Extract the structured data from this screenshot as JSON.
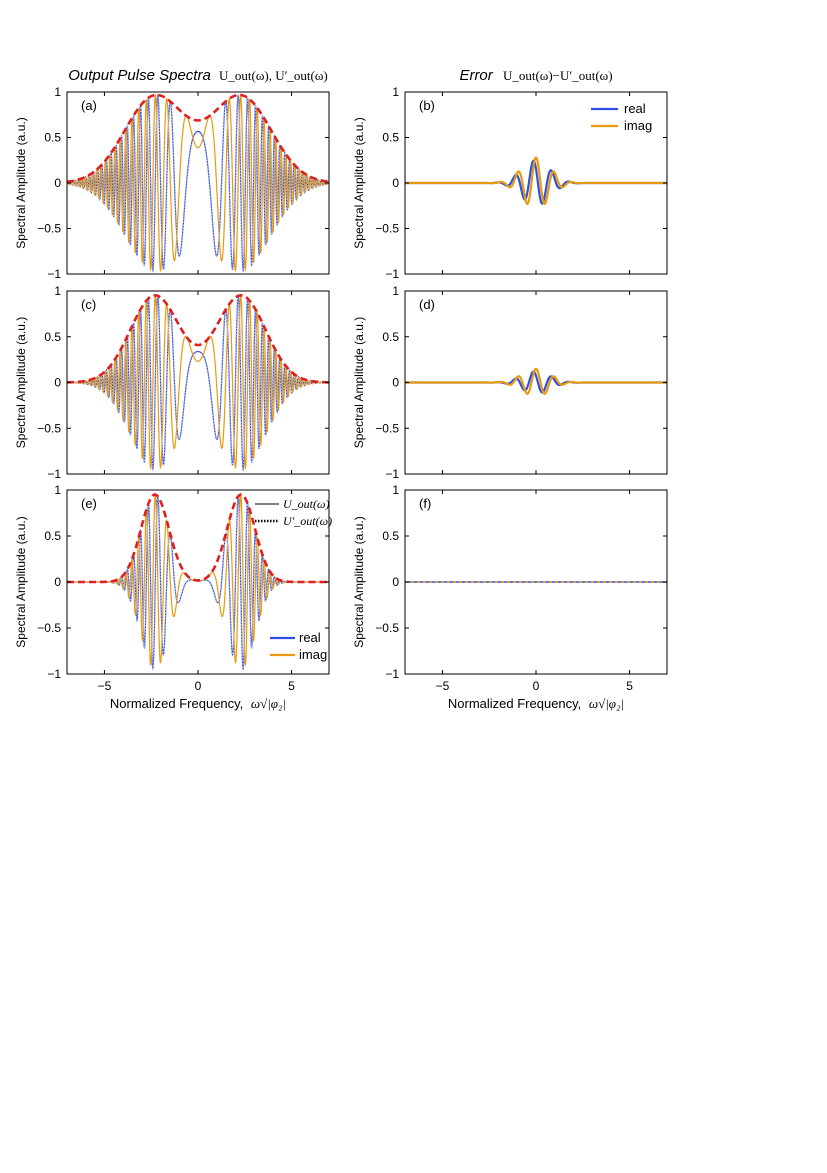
{
  "headers": {
    "left_italic": "Output Pulse Spectra",
    "left_math": "U_out(ω), U′_out(ω)",
    "right_italic": "Error",
    "right_math": "U_out(ω)−U′_out(ω)"
  },
  "axes": {
    "ylabel": "Spectral Amplitude (a.u.)",
    "xlabel_text": "Normalized Frequency,",
    "xlabel_math": "ω√|φ₂|",
    "xticks": [
      -5,
      0,
      5
    ],
    "yticks": [
      -1,
      -0.5,
      0,
      0.5,
      1
    ],
    "xlim": [
      -7,
      7
    ],
    "ylim": [
      -1,
      1
    ]
  },
  "colors": {
    "real": "#2f4fe0",
    "imag": "#e89a10",
    "envelope": "#e02020"
  },
  "legends": {
    "error": {
      "items": [
        "real",
        "imag"
      ],
      "placement": "top-right"
    },
    "panel_e_style": {
      "items": [
        "U_out(ω)",
        "U′_out(ω)"
      ],
      "placement": "top-right"
    },
    "panel_e_color": {
      "items": [
        "real",
        "imag"
      ],
      "placement": "bottom-right"
    }
  },
  "chart_data": [
    {
      "panel": "(a)",
      "type": "line",
      "kind": "spectrum",
      "peaks": [
        [
          -2.3,
          0.95
        ],
        [
          2.3,
          0.95
        ]
      ],
      "envelope_min_at_0": 0.62,
      "series": [
        {
          "name": "real"
        },
        {
          "name": "imag"
        }
      ],
      "xlim": [
        -7,
        7
      ],
      "ylim": [
        -1,
        1
      ]
    },
    {
      "panel": "(b)",
      "type": "line",
      "kind": "error",
      "peak_amplitude": {
        "real": 0.25,
        "imag": 0.28
      },
      "series": [
        {
          "name": "real"
        },
        {
          "name": "imag"
        }
      ],
      "xlim": [
        -7,
        7
      ],
      "ylim": [
        -1,
        1
      ]
    },
    {
      "panel": "(c)",
      "type": "line",
      "kind": "spectrum",
      "peaks": [
        [
          -2.3,
          0.95
        ],
        [
          2.3,
          0.95
        ]
      ],
      "envelope_min_at_0": 0.35,
      "series": [
        {
          "name": "real"
        },
        {
          "name": "imag"
        }
      ],
      "xlim": [
        -7,
        7
      ],
      "ylim": [
        -1,
        1
      ]
    },
    {
      "panel": "(d)",
      "type": "line",
      "kind": "error",
      "peak_amplitude": {
        "real": 0.12,
        "imag": 0.15
      },
      "series": [
        {
          "name": "real"
        },
        {
          "name": "imag"
        }
      ],
      "xlim": [
        -7,
        7
      ],
      "ylim": [
        -1,
        1
      ]
    },
    {
      "panel": "(e)",
      "type": "line",
      "kind": "spectrum",
      "peaks": [
        [
          -2.3,
          0.95
        ],
        [
          2.3,
          0.95
        ]
      ],
      "envelope_min_at_0": 0.0,
      "series": [
        {
          "name": "real"
        },
        {
          "name": "imag"
        }
      ],
      "xlim": [
        -7,
        7
      ],
      "ylim": [
        -1,
        1
      ]
    },
    {
      "panel": "(f)",
      "type": "line",
      "kind": "error",
      "peak_amplitude": {
        "real": 0.0,
        "imag": 0.0
      },
      "series": [
        {
          "name": "real"
        },
        {
          "name": "imag"
        }
      ],
      "xlim": [
        -7,
        7
      ],
      "ylim": [
        -1,
        1
      ]
    }
  ]
}
